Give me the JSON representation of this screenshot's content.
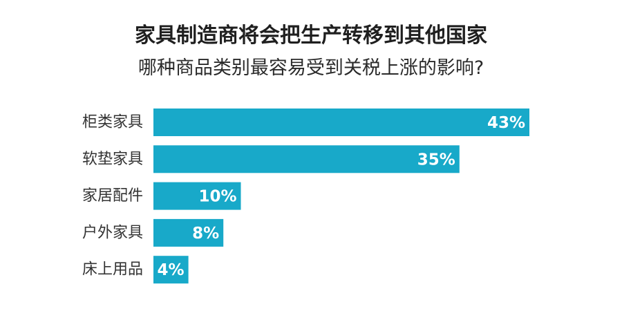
{
  "title": "家具制造商将会把生产转移到其他国家",
  "subtitle": "哪种商品类别最容易受到关税上涨的影响?",
  "colors": {
    "bar": "#18a9c9",
    "bar_label": "#ffffff",
    "category_label": "#333333"
  },
  "chart_data": {
    "type": "bar",
    "orientation": "horizontal",
    "categories": [
      "柜类家具",
      "软垫家具",
      "家居配件",
      "户外家具",
      "床上用品"
    ],
    "values": [
      43,
      35,
      10,
      8,
      4
    ],
    "value_labels": [
      "43%",
      "35%",
      "10%",
      "8%",
      "4%"
    ],
    "unit": "%",
    "xlim": [
      0,
      43
    ],
    "grid": false,
    "legend": "none"
  }
}
